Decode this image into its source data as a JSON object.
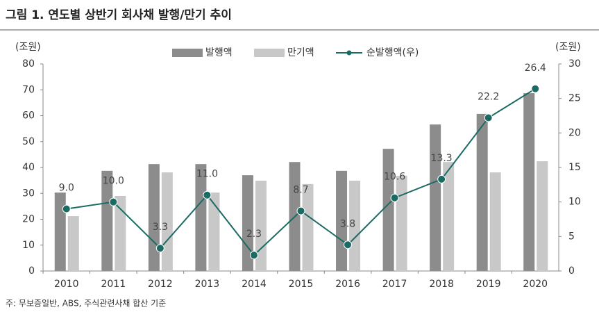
{
  "chart_data": {
    "type": "bar",
    "title": "그림 1. 연도별 상반기 회사채 발행/만기 추이",
    "ylabel": "(조원)",
    "y2label": "(조원)",
    "note": "주: 무보증일반, ABS, 주식관련사채 합산 기준",
    "categories": [
      "2010",
      "2011",
      "2012",
      "2013",
      "2014",
      "2015",
      "2016",
      "2017",
      "2018",
      "2019",
      "2020"
    ],
    "series": [
      {
        "name": "발행액",
        "type": "bar",
        "color": "#8c8c8c",
        "values": [
          30.3,
          38.7,
          41.3,
          41.3,
          37.0,
          42.1,
          38.7,
          47.2,
          56.6,
          60.7,
          68.7
        ]
      },
      {
        "name": "만기액",
        "type": "bar",
        "color": "#c8c8c8",
        "values": [
          21.2,
          29.0,
          38.1,
          30.3,
          34.9,
          33.6,
          34.9,
          36.8,
          42.1,
          38.1,
          42.4
        ]
      },
      {
        "name": "순발행액(우)",
        "type": "line",
        "axis": "y2",
        "color": "#1a6b63",
        "values": [
          9.0,
          10.0,
          3.3,
          11.0,
          2.3,
          8.7,
          3.8,
          10.6,
          13.3,
          22.2,
          26.4
        ],
        "value_labels": [
          "9.0",
          "10.0",
          "3.3",
          "11.0",
          "2.3",
          "8.7",
          "3.8",
          "10.6",
          "13.3",
          "22.2",
          "26.4"
        ]
      }
    ],
    "ylim": [
      0,
      80
    ],
    "yticks": [
      0,
      10,
      20,
      30,
      40,
      50,
      60,
      70,
      80
    ],
    "y2lim": [
      0,
      30
    ],
    "y2ticks": [
      0,
      5,
      10,
      15,
      20,
      25,
      30
    ],
    "grid": false,
    "legend": "top"
  }
}
